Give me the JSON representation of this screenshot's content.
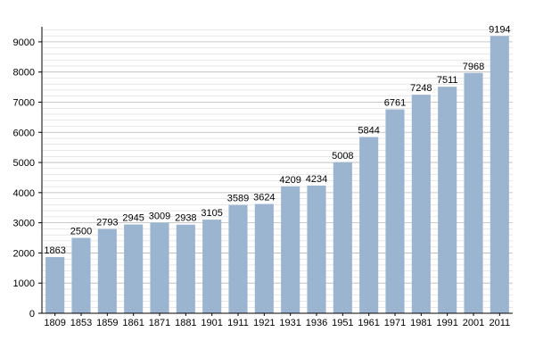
{
  "chart_data": {
    "type": "bar",
    "title": "",
    "xlabel": "",
    "ylabel": "",
    "categories": [
      "1809",
      "1853",
      "1859",
      "1861",
      "1871",
      "1881",
      "1901",
      "1911",
      "1921",
      "1931",
      "1936",
      "1951",
      "1961",
      "1971",
      "1981",
      "1991",
      "2001",
      "2011"
    ],
    "values": [
      1863,
      2500,
      2793,
      2945,
      3009,
      2938,
      3105,
      3589,
      3624,
      4209,
      4234,
      5008,
      5844,
      6761,
      7248,
      7511,
      7968,
      9194
    ],
    "ylim": [
      0,
      9500
    ],
    "yticks": [
      0,
      1000,
      2000,
      3000,
      4000,
      5000,
      6000,
      7000,
      8000,
      9000
    ],
    "minor_grid_step": 200,
    "grid": true,
    "legend": "none",
    "bar_color": "#9bb4cf",
    "grid_color": "#d0d0d0"
  }
}
